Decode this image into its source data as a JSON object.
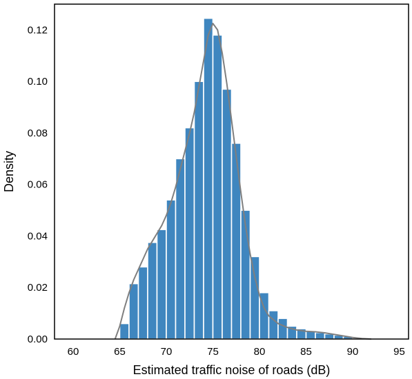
{
  "chart_data": {
    "type": "bar",
    "subtype": "histogram-with-kde",
    "title": "",
    "xlabel": "Estimated traffic noise of roads (dB)",
    "ylabel": "Density",
    "xlim": [
      58,
      96
    ],
    "ylim": [
      0,
      0.13
    ],
    "x_ticks": [
      60,
      65,
      70,
      75,
      80,
      85,
      90,
      95
    ],
    "y_ticks": [
      0.0,
      0.02,
      0.04,
      0.06,
      0.08,
      0.1,
      0.12
    ],
    "x_tick_labels": [
      "60",
      "65",
      "70",
      "75",
      "80",
      "85",
      "90",
      "95"
    ],
    "y_tick_labels": [
      "0.00",
      "0.02",
      "0.04",
      "0.06",
      "0.08",
      "0.10",
      "0.12"
    ],
    "grid": false,
    "legend": "none",
    "bin_width": 1,
    "bins": [
      {
        "x0": 65,
        "x1": 66,
        "density": 0.006
      },
      {
        "x0": 66,
        "x1": 67,
        "density": 0.0215
      },
      {
        "x0": 67,
        "x1": 68,
        "density": 0.028
      },
      {
        "x0": 68,
        "x1": 69,
        "density": 0.0375
      },
      {
        "x0": 69,
        "x1": 70,
        "density": 0.0425
      },
      {
        "x0": 70,
        "x1": 71,
        "density": 0.054
      },
      {
        "x0": 71,
        "x1": 72,
        "density": 0.07
      },
      {
        "x0": 72,
        "x1": 73,
        "density": 0.082
      },
      {
        "x0": 73,
        "x1": 74,
        "density": 0.1
      },
      {
        "x0": 74,
        "x1": 75,
        "density": 0.1245
      },
      {
        "x0": 75,
        "x1": 76,
        "density": 0.118
      },
      {
        "x0": 76,
        "x1": 77,
        "density": 0.097
      },
      {
        "x0": 77,
        "x1": 78,
        "density": 0.076
      },
      {
        "x0": 78,
        "x1": 79,
        "density": 0.05
      },
      {
        "x0": 79,
        "x1": 80,
        "density": 0.032
      },
      {
        "x0": 80,
        "x1": 81,
        "density": 0.018
      },
      {
        "x0": 81,
        "x1": 82,
        "density": 0.011
      },
      {
        "x0": 82,
        "x1": 83,
        "density": 0.008
      },
      {
        "x0": 83,
        "x1": 84,
        "density": 0.005
      },
      {
        "x0": 84,
        "x1": 85,
        "density": 0.004
      },
      {
        "x0": 85,
        "x1": 86,
        "density": 0.003
      },
      {
        "x0": 86,
        "x1": 87,
        "density": 0.0025
      },
      {
        "x0": 87,
        "x1": 88,
        "density": 0.002
      },
      {
        "x0": 88,
        "x1": 89,
        "density": 0.0015
      },
      {
        "x0": 89,
        "x1": 90,
        "density": 0.001
      }
    ],
    "kde": [
      [
        64.5,
        0.0
      ],
      [
        65.0,
        0.005
      ],
      [
        65.5,
        0.012
      ],
      [
        66.0,
        0.018
      ],
      [
        66.5,
        0.023
      ],
      [
        67.0,
        0.027
      ],
      [
        67.5,
        0.031
      ],
      [
        68.0,
        0.035
      ],
      [
        68.5,
        0.038
      ],
      [
        69.0,
        0.041
      ],
      [
        69.5,
        0.044
      ],
      [
        70.0,
        0.048
      ],
      [
        70.5,
        0.053
      ],
      [
        71.0,
        0.059
      ],
      [
        71.5,
        0.066
      ],
      [
        72.0,
        0.073
      ],
      [
        72.5,
        0.08
      ],
      [
        73.0,
        0.088
      ],
      [
        73.5,
        0.098
      ],
      [
        74.0,
        0.108
      ],
      [
        74.5,
        0.118
      ],
      [
        75.0,
        0.1225
      ],
      [
        75.5,
        0.12
      ],
      [
        76.0,
        0.111
      ],
      [
        76.5,
        0.099
      ],
      [
        77.0,
        0.085
      ],
      [
        77.5,
        0.071
      ],
      [
        78.0,
        0.057
      ],
      [
        78.5,
        0.044
      ],
      [
        79.0,
        0.033
      ],
      [
        79.5,
        0.024
      ],
      [
        80.0,
        0.017
      ],
      [
        80.5,
        0.012
      ],
      [
        81.0,
        0.009
      ],
      [
        81.5,
        0.0075
      ],
      [
        82.0,
        0.006
      ],
      [
        83.0,
        0.0045
      ],
      [
        84.0,
        0.0035
      ],
      [
        85.0,
        0.003
      ],
      [
        86.0,
        0.0028
      ],
      [
        87.0,
        0.0024
      ],
      [
        88.0,
        0.0018
      ],
      [
        89.0,
        0.0012
      ],
      [
        90.0,
        0.0006
      ],
      [
        91.0,
        0.0002
      ],
      [
        92.0,
        0.0
      ]
    ],
    "colors": {
      "bar_fill": "#3f86bf",
      "bar_edge": "#ffffff",
      "kde_line": "#7f7f7f",
      "axis": "#000000"
    }
  }
}
